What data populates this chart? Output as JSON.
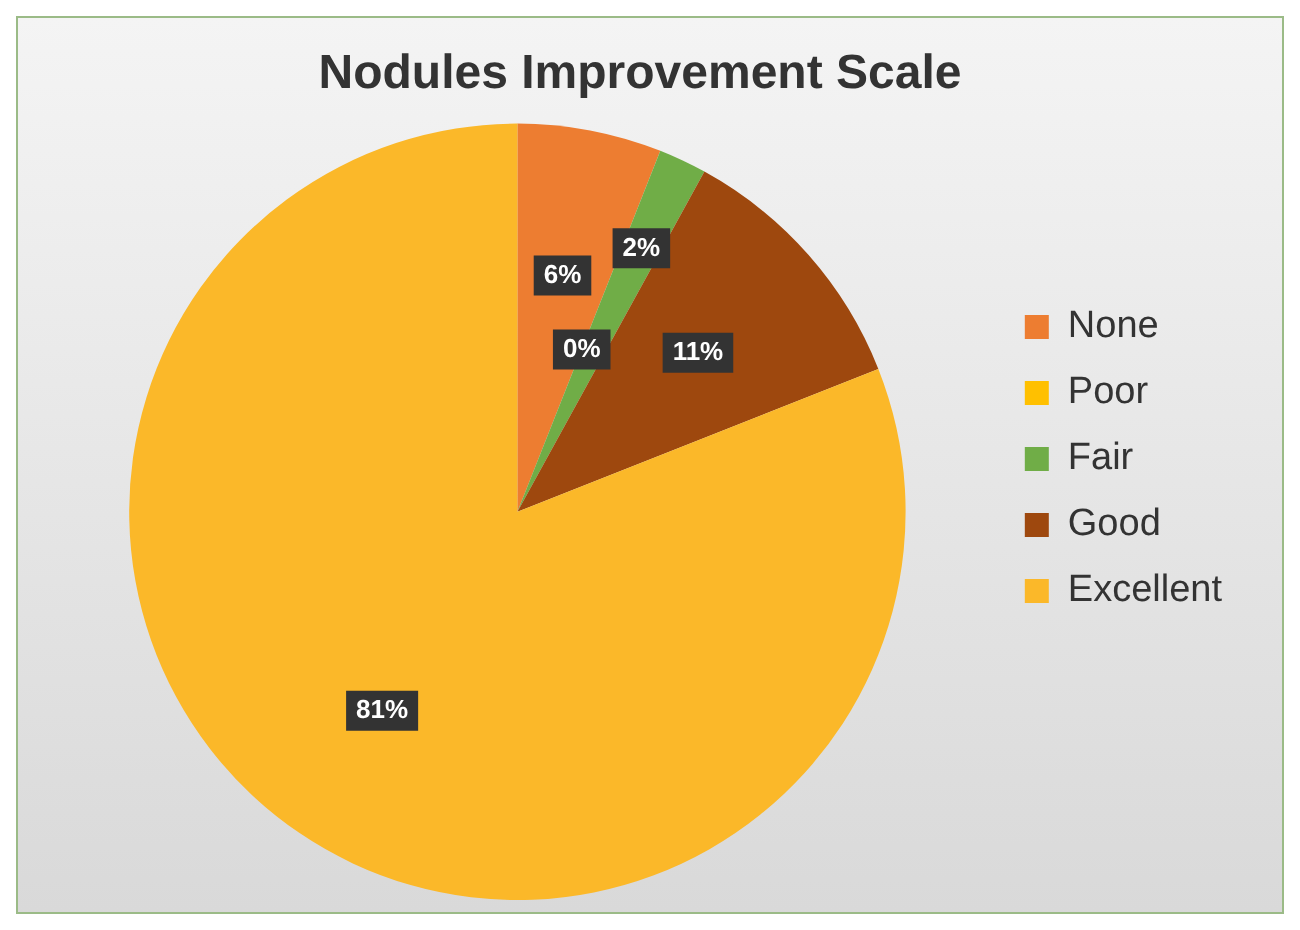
{
  "chart_data": {
    "type": "pie",
    "title": "Nodules Improvement Scale",
    "categories": [
      "None",
      "Poor",
      "Fair",
      "Good",
      "Excellent"
    ],
    "values": [
      6,
      0,
      2,
      11,
      81
    ],
    "value_labels": [
      "6%",
      "0%",
      "2%",
      "11%",
      "81%"
    ],
    "colors": [
      "#ed7d31",
      "#ffc000",
      "#70ad47",
      "#9e480e",
      "#fbb829"
    ],
    "legend": "right"
  }
}
